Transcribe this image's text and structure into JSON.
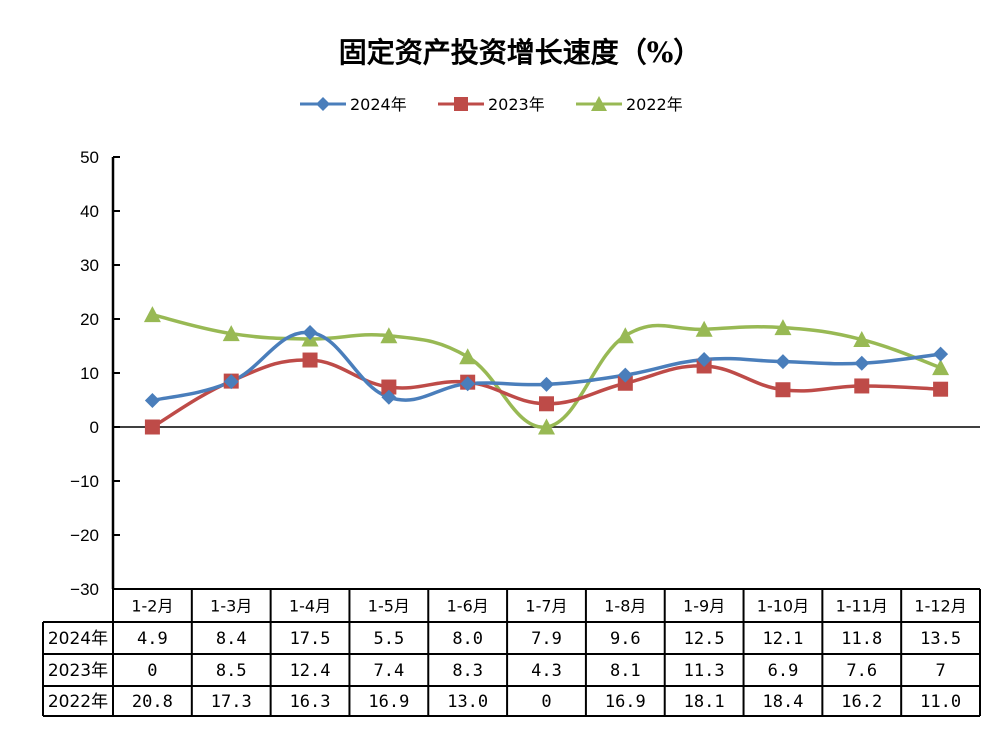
{
  "chart_data": {
    "type": "line",
    "title": "固定资产投资增长速度（%）",
    "categories": [
      "1-2月",
      "1-3月",
      "1-4月",
      "1-5月",
      "1-6月",
      "1-7月",
      "1-8月",
      "1-9月",
      "1-10月",
      "1-11月",
      "1-12月"
    ],
    "series": [
      {
        "name": "2024年",
        "color": "#4a7ebb",
        "marker": "diamond",
        "values": [
          4.9,
          8.4,
          17.5,
          5.5,
          8.0,
          7.9,
          9.6,
          12.5,
          12.1,
          11.8,
          13.5
        ],
        "labels": [
          "4.9",
          "8.4",
          "17.5",
          "5.5",
          "8.0",
          "7.9",
          "9.6",
          "12.5",
          "12.1",
          "11.8",
          "13.5"
        ]
      },
      {
        "name": "2023年",
        "color": "#be4b48",
        "marker": "square",
        "values": [
          0,
          8.5,
          12.4,
          7.4,
          8.3,
          4.3,
          8.1,
          11.3,
          6.9,
          7.6,
          7
        ],
        "labels": [
          "0",
          "8.5",
          "12.4",
          "7.4",
          "8.3",
          "4.3",
          "8.1",
          "11.3",
          "6.9",
          "7.6",
          "7"
        ]
      },
      {
        "name": "2022年",
        "color": "#98b954",
        "marker": "triangle",
        "values": [
          20.8,
          17.3,
          16.3,
          16.9,
          13.0,
          0,
          16.9,
          18.1,
          18.4,
          16.2,
          11.0
        ],
        "labels": [
          "20.8",
          "17.3",
          "16.3",
          "16.9",
          "13.0",
          "0",
          "16.9",
          "18.1",
          "18.4",
          "16.2",
          "11.0"
        ]
      }
    ],
    "ylim": [
      -30,
      50
    ],
    "yticks": [
      50,
      40,
      30,
      20,
      10,
      0,
      -10,
      -20,
      -30
    ],
    "ytick_labels": [
      "50",
      "40",
      "30",
      "20",
      "10",
      "0",
      "−10",
      "−20",
      "−30"
    ],
    "legend_position": "top",
    "grid": false,
    "data_table": true
  }
}
